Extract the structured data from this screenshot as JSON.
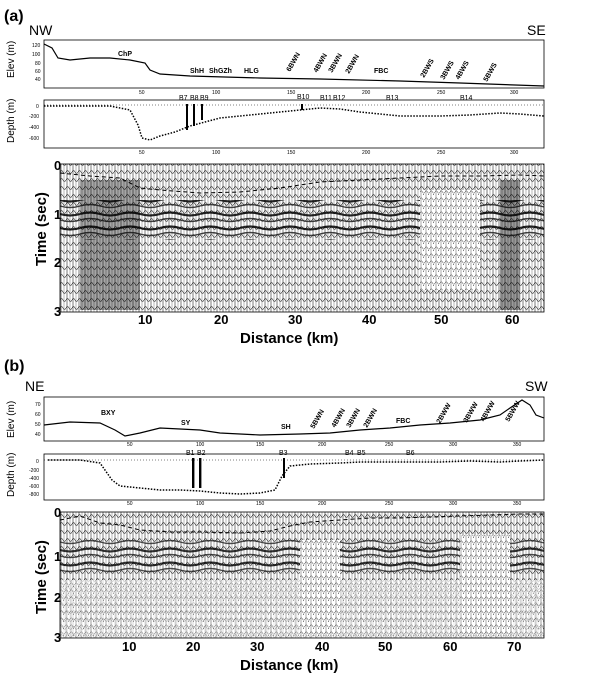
{
  "panel_a": {
    "label": "(a)",
    "dir_left": "NW",
    "dir_right": "SE",
    "elev_ylabel": "Elev (m)",
    "elev_yticks": [
      "120",
      "100",
      "80",
      "60",
      "40"
    ],
    "elev_xticks": [
      "50",
      "100",
      "150",
      "200",
      "250",
      "300"
    ],
    "elev_features": [
      "ChP",
      "ShH",
      "ShGZh",
      "HLG",
      "6BWN",
      "4BWN",
      "3BWN",
      "2BWN",
      "FBC",
      "2BWS",
      "3BWS",
      "4BWS",
      "5BWS"
    ],
    "depth_ylabel": "Depth (m)",
    "depth_yticks": [
      "0",
      "-200",
      "-400",
      "-600"
    ],
    "depth_xticks": [
      "50",
      "100",
      "150",
      "200",
      "250",
      "300"
    ],
    "boreholes": [
      "B7",
      "B8",
      "B9",
      "B10",
      "B11",
      "B12",
      "B13",
      "B14"
    ],
    "time_ylabel": "Time (sec)",
    "time_yticks": [
      "0",
      "1",
      "2",
      "3"
    ],
    "xlabel": "Distance (km)",
    "xticks": [
      "10",
      "20",
      "30",
      "40",
      "50",
      "60"
    ]
  },
  "panel_b": {
    "label": "(b)",
    "dir_left": "NE",
    "dir_right": "SW",
    "elev_ylabel": "Elev (m)",
    "elev_yticks": [
      "70",
      "60",
      "50",
      "40"
    ],
    "elev_xticks": [
      "50",
      "100",
      "150",
      "200",
      "250",
      "300",
      "350"
    ],
    "elev_features": [
      "BXY",
      "SY",
      "SH",
      "5BWN",
      "4BWN",
      "3BWN",
      "2BWN",
      "FBC",
      "2BWW",
      "3BWW",
      "4BWW",
      "5BWW"
    ],
    "depth_ylabel": "Depth (m)",
    "depth_yticks": [
      "0",
      "-200",
      "-400",
      "-600",
      "-800"
    ],
    "depth_xticks": [
      "50",
      "100",
      "150",
      "200",
      "250",
      "300",
      "350"
    ],
    "boreholes": [
      "B1",
      "B2",
      "B3",
      "B4",
      "B5",
      "B6"
    ],
    "time_ylabel": "Time (sec)",
    "time_yticks": [
      "0",
      "1",
      "2",
      "3"
    ],
    "xlabel": "Distance (km)",
    "xticks": [
      "10",
      "20",
      "30",
      "40",
      "50",
      "60",
      "70"
    ]
  }
}
